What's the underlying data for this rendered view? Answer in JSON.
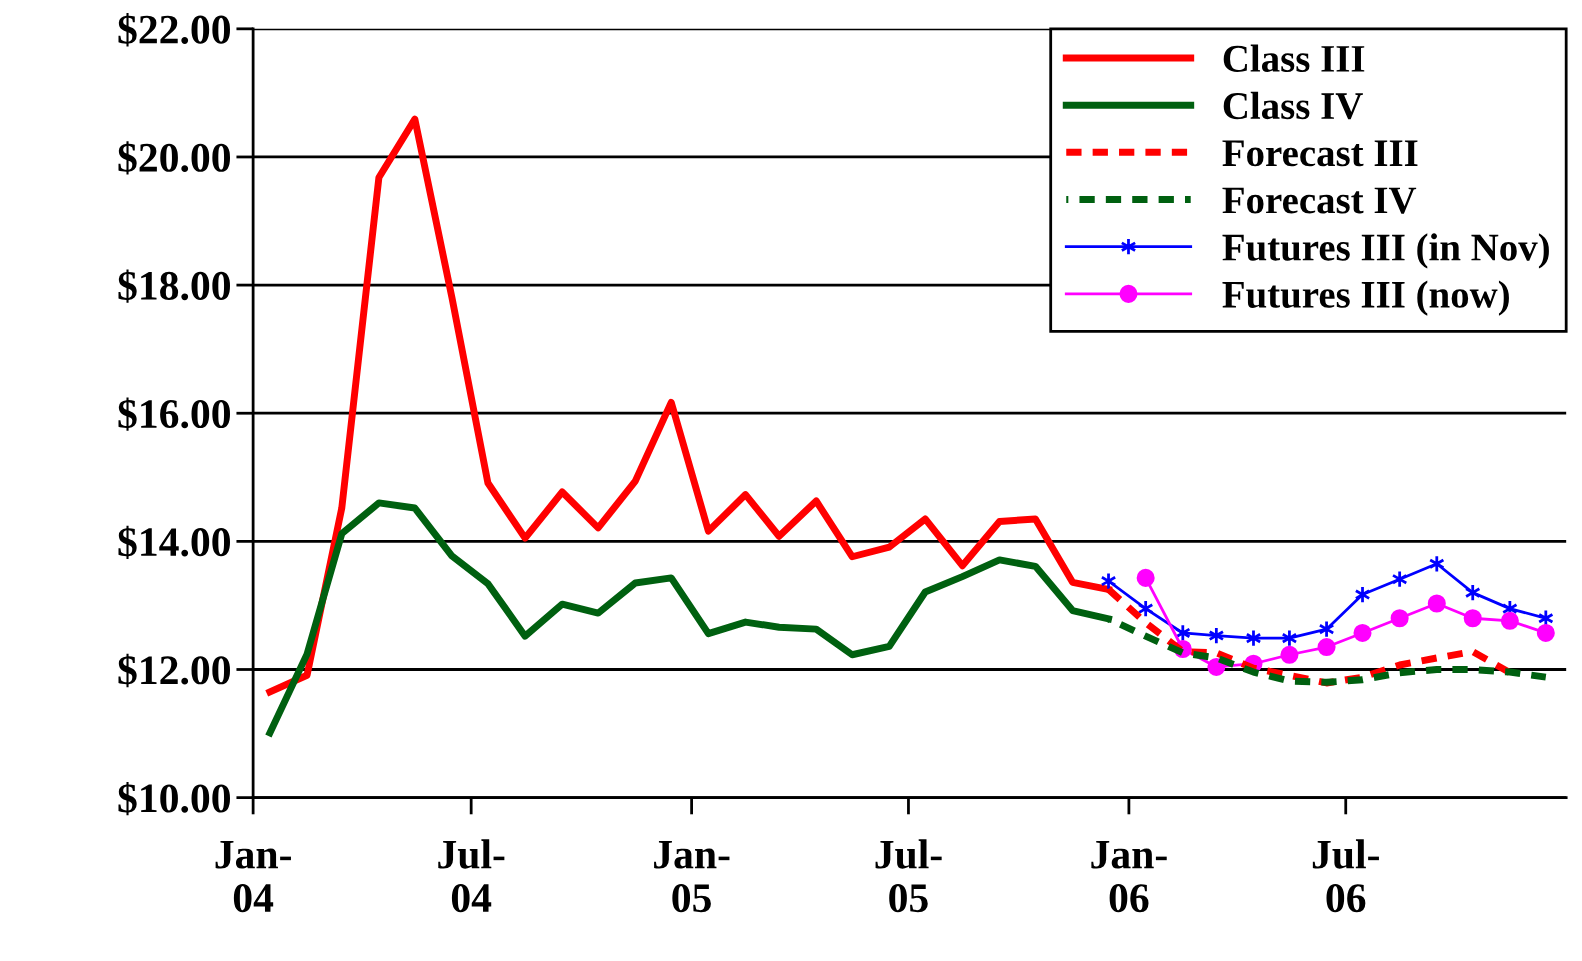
{
  "chart_data": {
    "type": "line",
    "xlim": [
      "2004-01-01",
      "2007-01-01"
    ],
    "xticks": [
      {
        "value": "2004-01-01",
        "label": "Jan-\n04"
      },
      {
        "value": "2004-07-01",
        "label": "Jul-\n04"
      },
      {
        "value": "2005-01-01",
        "label": "Jan-\n05"
      },
      {
        "value": "2005-07-01",
        "label": "Jul-\n05"
      },
      {
        "value": "2006-01-01",
        "label": "Jan-\n06"
      },
      {
        "value": "2006-07-01",
        "label": "Jul-\n06"
      }
    ],
    "ylim": [
      10,
      22
    ],
    "yticks": [
      {
        "value": 10,
        "label": "$10.00"
      },
      {
        "value": 12,
        "label": "$12.00"
      },
      {
        "value": 14,
        "label": "$14.00"
      },
      {
        "value": 16,
        "label": "$16.00"
      },
      {
        "value": 18,
        "label": "$18.00"
      },
      {
        "value": 20,
        "label": "$20.00"
      },
      {
        "value": 22,
        "label": "$22.00"
      }
    ],
    "grid": "y",
    "legend": "top right",
    "series": [
      {
        "name": "Class III",
        "color": "#ff0000",
        "line_style": "solid",
        "marker": "none",
        "x": [
          "2004-01-15",
          "2004-02-15",
          "2004-03-15",
          "2004-04-15",
          "2004-05-15",
          "2004-06-15",
          "2004-07-15",
          "2004-08-15",
          "2004-09-15",
          "2004-10-15",
          "2004-11-15",
          "2004-12-15",
          "2005-01-15",
          "2005-02-15",
          "2005-03-15",
          "2005-04-15",
          "2005-05-15",
          "2005-06-15",
          "2005-07-15",
          "2005-08-15",
          "2005-09-15",
          "2005-10-15",
          "2005-11-15",
          "2005-12-15"
        ],
        "values": [
          11.65,
          11.91,
          14.52,
          19.68,
          20.59,
          17.8,
          14.91,
          14.05,
          14.77,
          14.21,
          14.94,
          16.17,
          14.16,
          14.73,
          14.08,
          14.63,
          13.76,
          13.91,
          14.35,
          13.62,
          14.31,
          14.35,
          13.36,
          13.25
        ]
      },
      {
        "name": "Class IV",
        "color": "#006010",
        "line_style": "solid",
        "marker": "none",
        "x": [
          "2004-01-15",
          "2004-02-15",
          "2004-03-15",
          "2004-04-15",
          "2004-05-15",
          "2004-06-15",
          "2004-07-15",
          "2004-08-15",
          "2004-09-15",
          "2004-10-15",
          "2004-11-15",
          "2004-12-15",
          "2005-01-15",
          "2005-02-15",
          "2005-03-15",
          "2005-04-15",
          "2005-05-15",
          "2005-06-15",
          "2005-07-15",
          "2005-08-15",
          "2005-09-15",
          "2005-10-15",
          "2005-11-15",
          "2005-12-15"
        ],
        "values": [
          11.01,
          12.24,
          14.12,
          14.6,
          14.52,
          13.77,
          13.34,
          12.52,
          13.02,
          12.88,
          13.35,
          13.43,
          12.56,
          12.74,
          12.66,
          12.63,
          12.23,
          12.36,
          13.21,
          13.45,
          13.71,
          13.61,
          12.92,
          12.79
        ]
      },
      {
        "name": "Forecast III",
        "color": "#ff0000",
        "line_style": "dashed",
        "marker": "none",
        "x": [
          "2005-12-15",
          "2006-01-15",
          "2006-02-15",
          "2006-03-15",
          "2006-04-15",
          "2006-05-15",
          "2006-06-15",
          "2006-07-15",
          "2006-08-15",
          "2006-09-15",
          "2006-10-15",
          "2006-11-15"
        ],
        "values": [
          13.25,
          12.73,
          12.28,
          12.26,
          12.02,
          11.91,
          11.79,
          11.88,
          12.07,
          12.18,
          12.28,
          11.95
        ]
      },
      {
        "name": "Forecast IV",
        "color": "#006010",
        "line_style": "dashed",
        "marker": "none",
        "x": [
          "2005-12-15",
          "2006-01-15",
          "2006-02-15",
          "2006-03-15",
          "2006-04-15",
          "2006-05-15",
          "2006-06-15",
          "2006-07-15",
          "2006-08-15",
          "2006-09-15",
          "2006-10-15",
          "2006-11-15",
          "2006-12-15"
        ],
        "values": [
          12.79,
          12.52,
          12.26,
          12.18,
          11.96,
          11.82,
          11.8,
          11.84,
          11.95,
          12.0,
          12.0,
          11.96,
          11.88
        ]
      },
      {
        "name": "Futures III (in Nov)",
        "color": "#0000ff",
        "line_style": "solid",
        "marker": "cross",
        "x": [
          "2005-12-15",
          "2006-01-15",
          "2006-02-15",
          "2006-03-15",
          "2006-04-15",
          "2006-05-15",
          "2006-06-15",
          "2006-07-15",
          "2006-08-15",
          "2006-09-15",
          "2006-10-15",
          "2006-11-15",
          "2006-12-15"
        ],
        "values": [
          13.38,
          12.95,
          12.57,
          12.53,
          12.49,
          12.49,
          12.63,
          13.17,
          13.41,
          13.65,
          13.2,
          12.95,
          12.8
        ]
      },
      {
        "name": "Futures III (now)",
        "color": "#ff00ff",
        "line_style": "solid",
        "marker": "circle",
        "x": [
          "2006-01-15",
          "2006-02-15",
          "2006-03-15",
          "2006-04-15",
          "2006-05-15",
          "2006-06-15",
          "2006-07-15",
          "2006-08-15",
          "2006-09-15",
          "2006-10-15",
          "2006-11-15",
          "2006-12-15"
        ],
        "values": [
          13.43,
          12.32,
          12.04,
          12.09,
          12.23,
          12.35,
          12.57,
          12.8,
          13.03,
          12.8,
          12.76,
          12.57
        ]
      }
    ]
  }
}
